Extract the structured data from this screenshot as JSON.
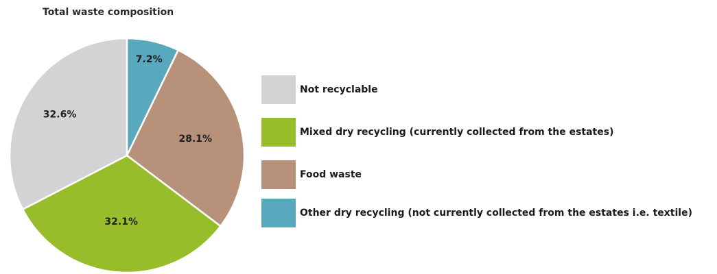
{
  "chart_data": {
    "type": "pie",
    "title": "Total waste composition",
    "slices": [
      {
        "label": "Other dry recycling (not currently collected from the estates i.e. textile)",
        "value": 7.2,
        "display": "7.2%",
        "color": "#58a9bd"
      },
      {
        "label": "Food waste",
        "value": 28.1,
        "display": "28.1%",
        "color": "#b8917a"
      },
      {
        "label": "Mixed dry recycling (currently collected from the estates)",
        "value": 32.1,
        "display": "32.1%",
        "color": "#97be2a"
      },
      {
        "label": "Not recyclable",
        "value": 32.6,
        "display": "32.6%",
        "color": "#d3d3d5"
      }
    ],
    "legend": [
      {
        "label": "Not recyclable",
        "color": "#d3d3d5"
      },
      {
        "label": "Mixed dry recycling (currently collected from the estates)",
        "color": "#97be2a"
      },
      {
        "label": "Food waste",
        "color": "#b8917a"
      },
      {
        "label": "Other dry recycling (not currently collected from the estates i.e. textile)",
        "color": "#58a9bd"
      }
    ],
    "legend_position": "right"
  }
}
